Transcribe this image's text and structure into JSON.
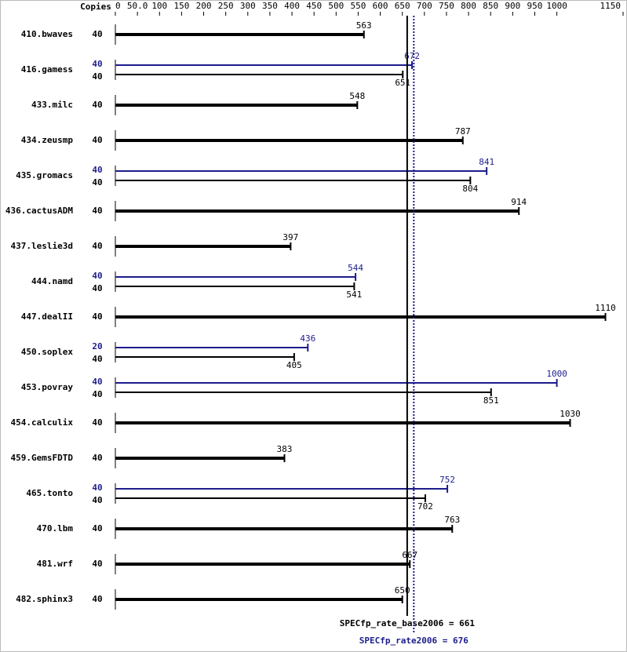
{
  "chart_data": {
    "type": "bar",
    "copies_header": "Copies",
    "categories": [
      "410.bwaves",
      "416.gamess",
      "433.milc",
      "434.zeusmp",
      "435.gromacs",
      "436.cactusADM",
      "437.leslie3d",
      "444.namd",
      "447.dealII",
      "450.soplex",
      "453.povray",
      "454.calculix",
      "459.GemsFDTD",
      "465.tonto",
      "470.lbm",
      "481.wrf",
      "482.sphinx3"
    ],
    "series": [
      {
        "name": "base",
        "color": "#000000",
        "copies": [
          40,
          40,
          40,
          40,
          40,
          40,
          40,
          40,
          40,
          40,
          40,
          40,
          40,
          40,
          40,
          40,
          40
        ],
        "values": [
          563,
          651,
          548,
          787,
          804,
          914,
          397,
          541,
          1110,
          405,
          851,
          1030,
          383,
          702,
          763,
          667,
          650
        ]
      },
      {
        "name": "peak",
        "color": "#1c1c8c",
        "copies": [
          null,
          40,
          null,
          null,
          40,
          null,
          null,
          40,
          null,
          20,
          40,
          null,
          null,
          40,
          null,
          null,
          null
        ],
        "values": [
          null,
          672,
          null,
          null,
          841,
          null,
          null,
          544,
          null,
          436,
          1000,
          null,
          null,
          752,
          null,
          null,
          null
        ]
      }
    ],
    "xlim": [
      0,
      1150
    ],
    "xticks": [
      0,
      {
        "value": 50,
        "label": "50.0"
      },
      100,
      150,
      200,
      250,
      300,
      350,
      400,
      450,
      500,
      550,
      600,
      650,
      700,
      750,
      800,
      850,
      900,
      950,
      1000,
      1150
    ],
    "reference_lines": [
      {
        "label": "SPECfp_rate_base2006 = 661",
        "value": 661,
        "color": "#000000",
        "style": "solid"
      },
      {
        "label": "SPECfp_rate2006 = 676",
        "value": 676,
        "color": "#1c1c8c",
        "style": "dotted"
      }
    ]
  }
}
